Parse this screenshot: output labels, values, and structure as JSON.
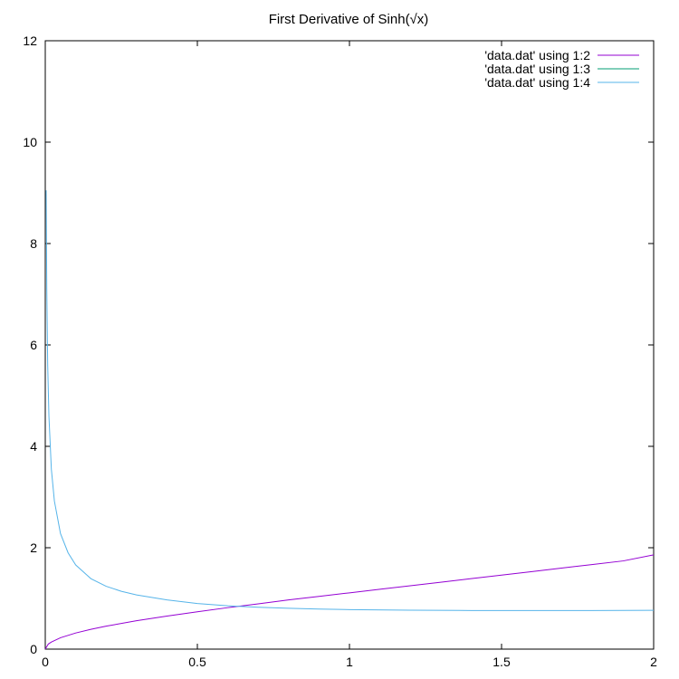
{
  "chart_data": {
    "type": "line",
    "title": "First Derivative of Sinh(√x)",
    "xlabel": "",
    "ylabel": "",
    "xlim": [
      0,
      2
    ],
    "ylim": [
      0,
      12
    ],
    "grid": false,
    "legend_position": "top-right",
    "x_ticks": [
      0,
      0.5,
      1,
      1.5,
      2
    ],
    "x_tick_labels": [
      "0",
      "0.5",
      "1",
      "1.5",
      "2"
    ],
    "y_ticks": [
      0,
      2,
      4,
      6,
      8,
      10,
      12
    ],
    "y_tick_labels": [
      "0",
      "2",
      "4",
      "6",
      "8",
      "10",
      "12"
    ],
    "series": [
      {
        "name": "'data.dat' using 1:2",
        "color": "#9400d3",
        "points": [
          [
            0,
            0
          ],
          [
            0.01,
            0.1
          ],
          [
            0.02,
            0.14
          ],
          [
            0.05,
            0.224
          ],
          [
            0.1,
            0.318
          ],
          [
            0.15,
            0.39
          ],
          [
            0.2,
            0.453
          ],
          [
            0.3,
            0.56
          ],
          [
            0.4,
            0.652
          ],
          [
            0.5,
            0.737
          ],
          [
            0.6,
            0.818
          ],
          [
            0.7,
            0.893
          ],
          [
            0.8,
            0.97
          ],
          [
            0.9,
            1.04
          ],
          [
            1.0,
            1.11
          ],
          [
            1.1,
            1.18
          ],
          [
            1.2,
            1.25
          ],
          [
            1.3,
            1.32
          ],
          [
            1.4,
            1.39
          ],
          [
            1.5,
            1.46
          ],
          [
            1.6,
            1.53
          ],
          [
            1.7,
            1.6
          ],
          [
            1.8,
            1.67
          ],
          [
            1.9,
            1.74
          ],
          [
            2.0,
            1.86
          ]
        ]
      },
      {
        "name": "'data.dat' using 1:3",
        "color": "#009e73",
        "points": []
      },
      {
        "name": "'data.dat' using 1:4",
        "color": "#56b4e9",
        "points": [
          [
            0.003,
            9.05
          ],
          [
            0.005,
            7.1
          ],
          [
            0.008,
            5.6
          ],
          [
            0.012,
            4.6
          ],
          [
            0.02,
            3.55
          ],
          [
            0.03,
            2.92
          ],
          [
            0.05,
            2.28
          ],
          [
            0.075,
            1.9
          ],
          [
            0.1,
            1.66
          ],
          [
            0.15,
            1.39
          ],
          [
            0.2,
            1.24
          ],
          [
            0.25,
            1.14
          ],
          [
            0.3,
            1.07
          ],
          [
            0.4,
            0.97
          ],
          [
            0.5,
            0.9
          ],
          [
            0.6,
            0.855
          ],
          [
            0.7,
            0.825
          ],
          [
            0.8,
            0.805
          ],
          [
            0.9,
            0.79
          ],
          [
            1.0,
            0.78
          ],
          [
            1.2,
            0.768
          ],
          [
            1.4,
            0.762
          ],
          [
            1.6,
            0.761
          ],
          [
            1.8,
            0.762
          ],
          [
            2.0,
            0.765
          ]
        ]
      }
    ]
  }
}
